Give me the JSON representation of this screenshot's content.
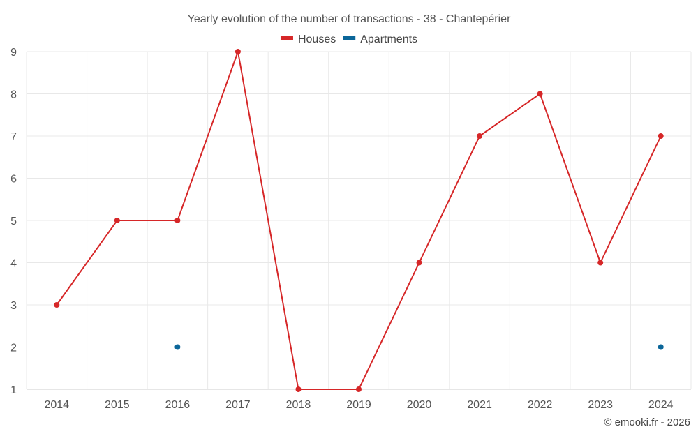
{
  "chart_data": {
    "type": "line",
    "title": "Yearly evolution of the number of transactions - 38 - Chantepérier",
    "x": [
      "2014",
      "2015",
      "2016",
      "2017",
      "2018",
      "2019",
      "2020",
      "2021",
      "2022",
      "2023",
      "2024"
    ],
    "ylim": [
      1,
      9
    ],
    "yticks": [
      1,
      2,
      3,
      4,
      5,
      6,
      7,
      8,
      9
    ],
    "grid": true,
    "legend_position": "top-center",
    "series": [
      {
        "name": "Houses",
        "color": "#d62728",
        "values": [
          3,
          5,
          5,
          9,
          1,
          1,
          4,
          7,
          8,
          4,
          7
        ]
      },
      {
        "name": "Apartments",
        "color": "#0b6699",
        "values": [
          null,
          null,
          2,
          null,
          null,
          null,
          null,
          null,
          null,
          null,
          2
        ]
      }
    ]
  },
  "credit": "© emooki.fr - 2026"
}
